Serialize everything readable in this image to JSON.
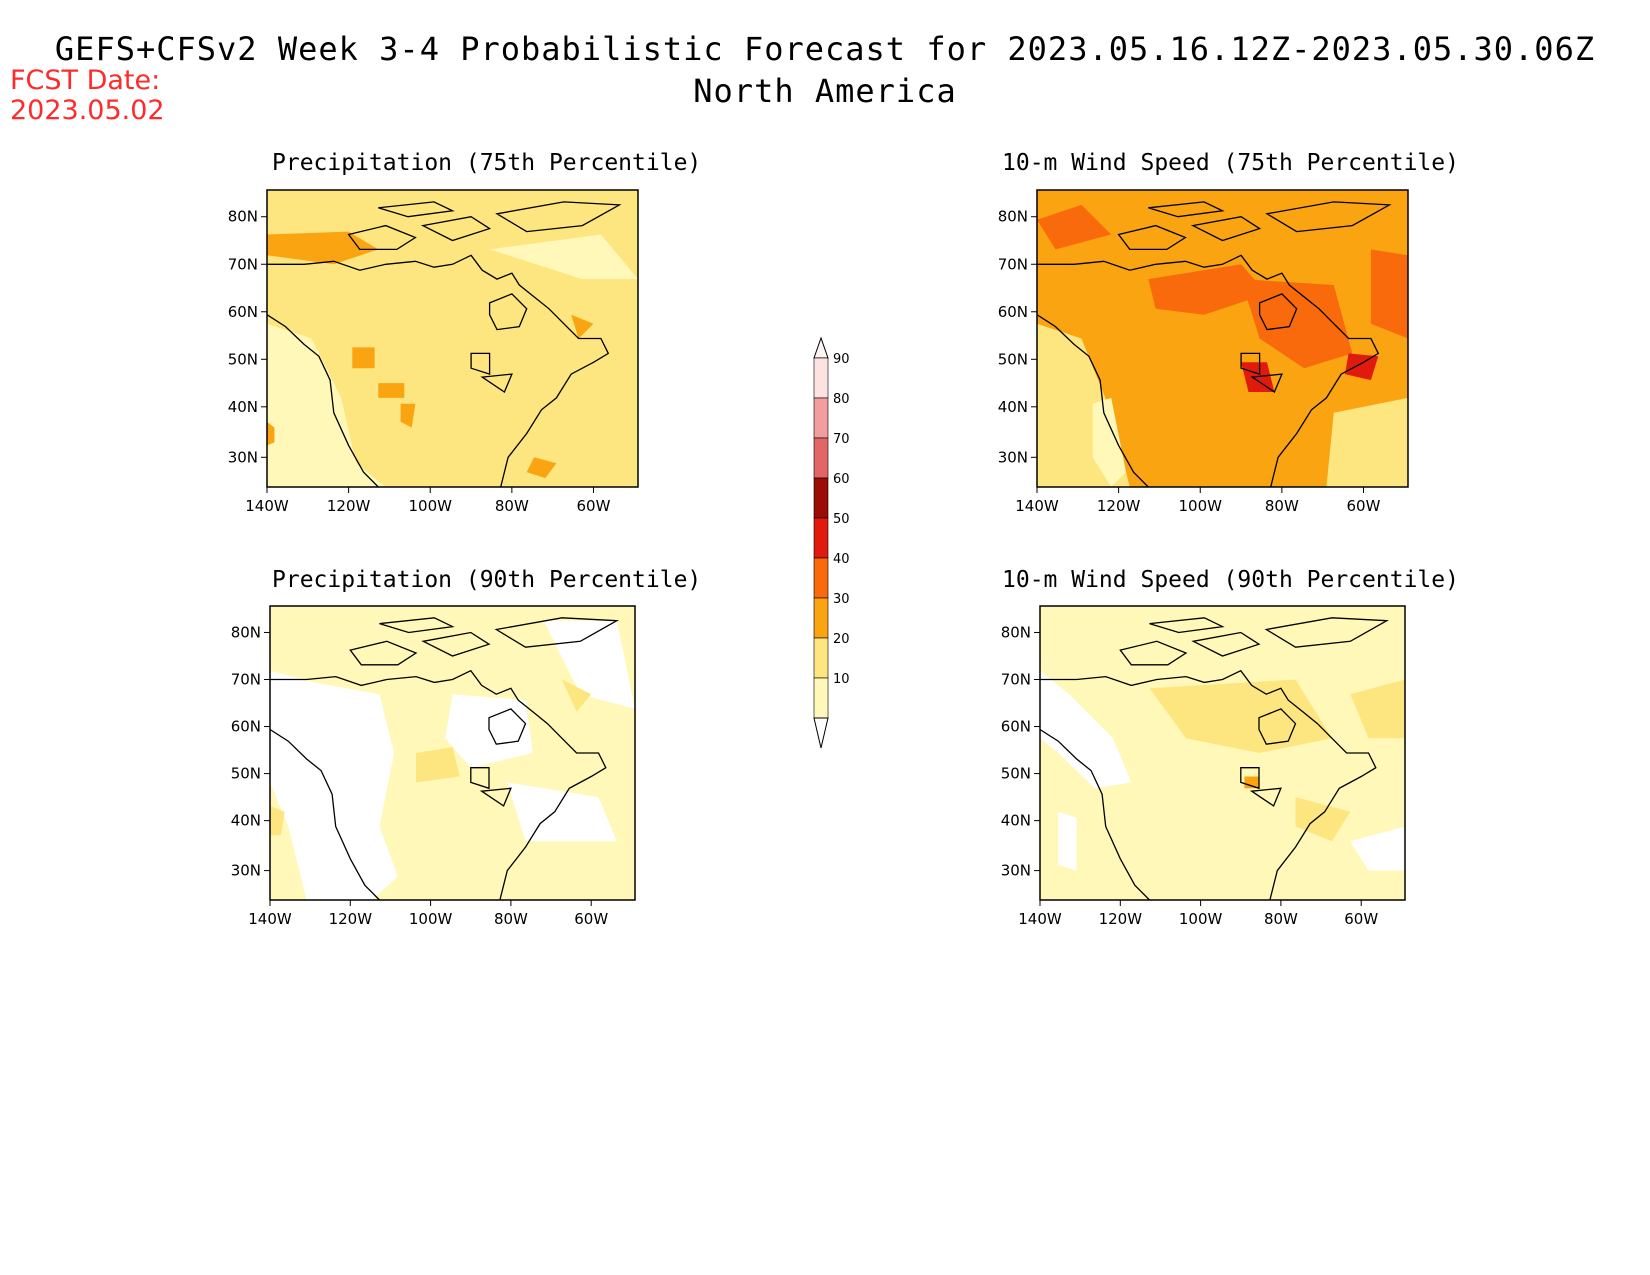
{
  "header": {
    "title": "GEFS+CFSv2 Week 3-4 Probabilistic Forecast for 2023.05.16.12Z-2023.05.30.06Z",
    "region": "North America",
    "fcst_label": "FCST Date:",
    "fcst_date": "2023.05.02"
  },
  "colors": {
    "c10": "#fff8b8",
    "c20": "#fde680",
    "c30": "#fba412",
    "c40": "#f96a0c",
    "c50": "#e01b0e",
    "c60": "#9b0c06",
    "c70": "#e36666",
    "c80": "#f29e9e",
    "c90": "#fde2e2",
    "ocean": "#ffffff",
    "coast": "#000000",
    "title_red": "#ff2a2a"
  },
  "axes": {
    "lon_labels": [
      "140W",
      "120W",
      "100W",
      "80W",
      "60W"
    ],
    "lat_labels": [
      "80N",
      "70N",
      "60N",
      "50N",
      "40N",
      "30N"
    ]
  },
  "panels": [
    {
      "title": "Precipitation (75th Percentile)",
      "base": "c20"
    },
    {
      "title": "10-m Wind Speed (75th Percentile)",
      "base": "c30"
    },
    {
      "title": "Precipitation (90th Percentile)",
      "base": "c10"
    },
    {
      "title": "10-m Wind Speed (90th Percentile)",
      "base": "c10"
    }
  ],
  "colorbar": {
    "levels": [
      "90",
      "80",
      "70",
      "60",
      "50",
      "40",
      "30",
      "20",
      "10"
    ]
  }
}
